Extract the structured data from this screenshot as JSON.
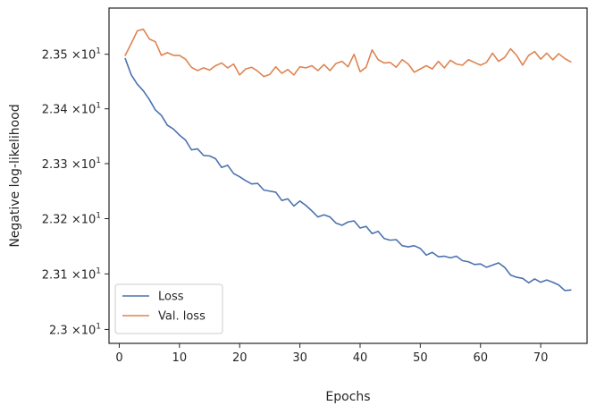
{
  "chart_data": {
    "type": "line",
    "xlabel": "Epochs",
    "ylabel": "Negative log-likelihood",
    "xlim": [
      -1.7,
      77.7
    ],
    "ylim": [
      22.975,
      23.585
    ],
    "yscale": "log",
    "x_ticks": [
      0,
      10,
      20,
      30,
      40,
      50,
      60,
      70
    ],
    "x_tick_labels": [
      "0",
      "10",
      "20",
      "30",
      "40",
      "50",
      "60",
      "70"
    ],
    "y_ticks": [
      {
        "value": 23.0,
        "mantissa": "2.3",
        "exponent": "1"
      },
      {
        "value": 23.1,
        "mantissa": "2.31",
        "exponent": "1"
      },
      {
        "value": 23.2,
        "mantissa": "2.32",
        "exponent": "1"
      },
      {
        "value": 23.3,
        "mantissa": "2.33",
        "exponent": "1"
      },
      {
        "value": 23.4,
        "mantissa": "2.34",
        "exponent": "1"
      },
      {
        "value": 23.5,
        "mantissa": "2.35",
        "exponent": "1"
      }
    ],
    "y_tick_times": "×10",
    "legend_position": "lower-left",
    "grid": false,
    "series": [
      {
        "name": "Loss",
        "color": "#4c72b0",
        "x": [
          1,
          2,
          3,
          4,
          5,
          6,
          7,
          8,
          9,
          10,
          11,
          12,
          13,
          14,
          15,
          16,
          17,
          18,
          19,
          20,
          21,
          22,
          23,
          24,
          25,
          26,
          27,
          28,
          29,
          30,
          31,
          32,
          33,
          34,
          35,
          36,
          37,
          38,
          39,
          40,
          41,
          42,
          43,
          44,
          45,
          46,
          47,
          48,
          49,
          50,
          51,
          52,
          53,
          54,
          55,
          56,
          57,
          58,
          59,
          60,
          61,
          62,
          63,
          64,
          65,
          66,
          67,
          68,
          69,
          70,
          71,
          72,
          73,
          74,
          75
        ],
        "values": [
          23.492,
          23.462,
          23.445,
          23.433,
          23.417,
          23.398,
          23.388,
          23.37,
          23.363,
          23.352,
          23.343,
          23.325,
          23.327,
          23.315,
          23.314,
          23.309,
          23.293,
          23.297,
          23.282,
          23.276,
          23.269,
          23.263,
          23.264,
          23.252,
          23.25,
          23.248,
          23.233,
          23.236,
          23.223,
          23.232,
          23.224,
          23.214,
          23.203,
          23.207,
          23.203,
          23.192,
          23.188,
          23.194,
          23.196,
          23.183,
          23.186,
          23.173,
          23.177,
          23.164,
          23.161,
          23.162,
          23.151,
          23.149,
          23.151,
          23.146,
          23.134,
          23.139,
          23.131,
          23.132,
          23.129,
          23.132,
          23.124,
          23.122,
          23.117,
          23.118,
          23.112,
          23.116,
          23.12,
          23.112,
          23.098,
          23.094,
          23.092,
          23.084,
          23.091,
          23.085,
          23.089,
          23.085,
          23.08,
          23.07,
          23.071
        ]
      },
      {
        "name": "Val. loss",
        "color": "#dd8452",
        "x": [
          1,
          2,
          3,
          4,
          5,
          6,
          7,
          8,
          9,
          10,
          11,
          12,
          13,
          14,
          15,
          16,
          17,
          18,
          19,
          20,
          21,
          22,
          23,
          24,
          25,
          26,
          27,
          28,
          29,
          30,
          31,
          32,
          33,
          34,
          35,
          36,
          37,
          38,
          39,
          40,
          41,
          42,
          43,
          44,
          45,
          46,
          47,
          48,
          49,
          50,
          51,
          52,
          53,
          54,
          55,
          56,
          57,
          58,
          59,
          60,
          61,
          62,
          63,
          64,
          65,
          66,
          67,
          68,
          69,
          70,
          71,
          72,
          73,
          74,
          75
        ],
        "values": [
          23.498,
          23.52,
          23.543,
          23.546,
          23.528,
          23.523,
          23.498,
          23.503,
          23.498,
          23.498,
          23.491,
          23.476,
          23.47,
          23.475,
          23.471,
          23.479,
          23.484,
          23.475,
          23.482,
          23.462,
          23.473,
          23.476,
          23.469,
          23.459,
          23.463,
          23.477,
          23.465,
          23.472,
          23.462,
          23.477,
          23.475,
          23.479,
          23.47,
          23.481,
          23.47,
          23.483,
          23.487,
          23.477,
          23.5,
          23.468,
          23.476,
          23.508,
          23.49,
          23.484,
          23.485,
          23.476,
          23.49,
          23.482,
          23.467,
          23.473,
          23.479,
          23.473,
          23.487,
          23.475,
          23.489,
          23.482,
          23.48,
          23.49,
          23.485,
          23.48,
          23.485,
          23.502,
          23.487,
          23.494,
          23.51,
          23.498,
          23.48,
          23.498,
          23.505,
          23.491,
          23.502,
          23.49,
          23.501,
          23.492,
          23.486
        ]
      }
    ]
  }
}
